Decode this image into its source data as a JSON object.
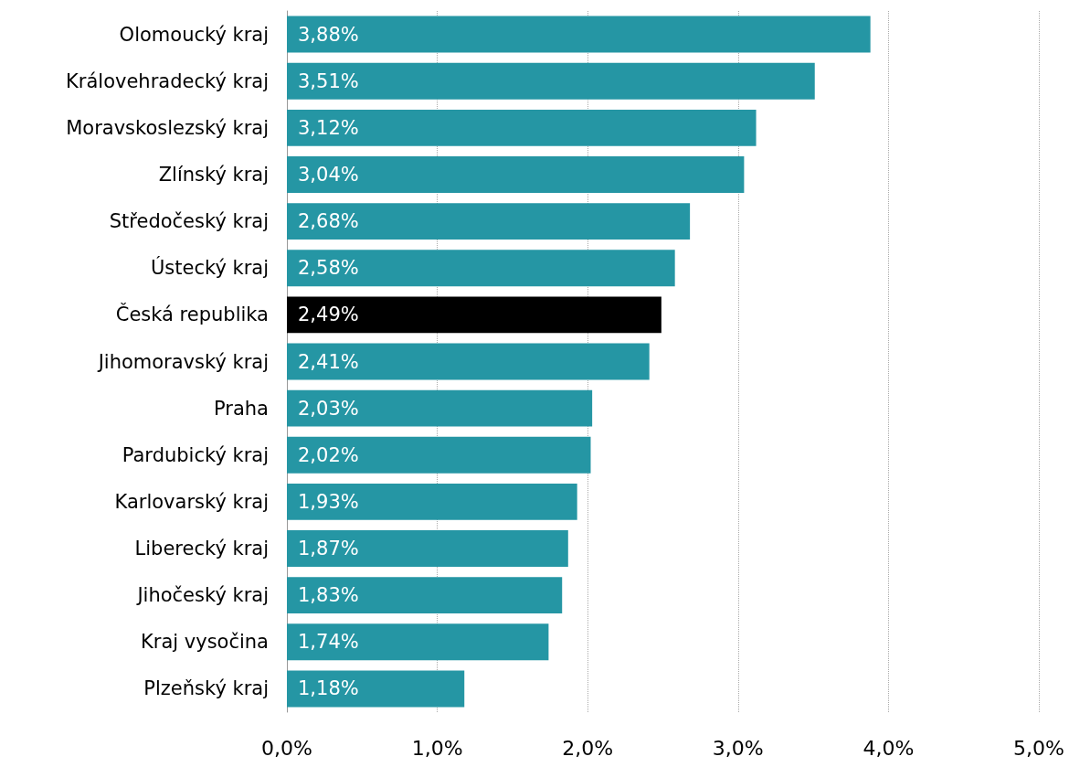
{
  "chart_data": {
    "type": "bar",
    "orientation": "horizontal",
    "categories": [
      "Olomoucký kraj",
      "Královehradecký kraj",
      "Moravskoslezský kraj",
      "Zlínský kraj",
      "Středočeský kraj",
      "Ústecký kraj",
      "Česká republika",
      "Jihomoravský kraj",
      "Praha",
      "Pardubický kraj",
      "Karlovarský kraj",
      "Liberecký kraj",
      "Jihočeský kraj",
      "Kraj vysočina",
      "Plzeňský kraj"
    ],
    "values": [
      3.88,
      3.51,
      3.12,
      3.04,
      2.68,
      2.58,
      2.49,
      2.41,
      2.03,
      2.02,
      1.93,
      1.87,
      1.83,
      1.74,
      1.18
    ],
    "value_labels": [
      "3,88%",
      "3,51%",
      "3,12%",
      "3,04%",
      "2,68%",
      "2,58%",
      "2,49%",
      "2,41%",
      "2,03%",
      "2,02%",
      "1,93%",
      "1,87%",
      "1,83%",
      "1,74%",
      "1,18%"
    ],
    "colors": [
      "#2596a4",
      "#2596a4",
      "#2596a4",
      "#2596a4",
      "#2596a4",
      "#2596a4",
      "#000000",
      "#2596a4",
      "#2596a4",
      "#2596a4",
      "#2596a4",
      "#2596a4",
      "#2596a4",
      "#2596a4",
      "#2596a4"
    ],
    "xlim": [
      0,
      5
    ],
    "xticks": [
      {
        "value": 0,
        "label": "0,0%"
      },
      {
        "value": 1,
        "label": "1,0%"
      },
      {
        "value": 2,
        "label": "2,0%"
      },
      {
        "value": 3,
        "label": "3,0%"
      },
      {
        "value": 4,
        "label": "4,0%"
      },
      {
        "value": 5,
        "label": "5,0%"
      }
    ],
    "grid": "x"
  }
}
